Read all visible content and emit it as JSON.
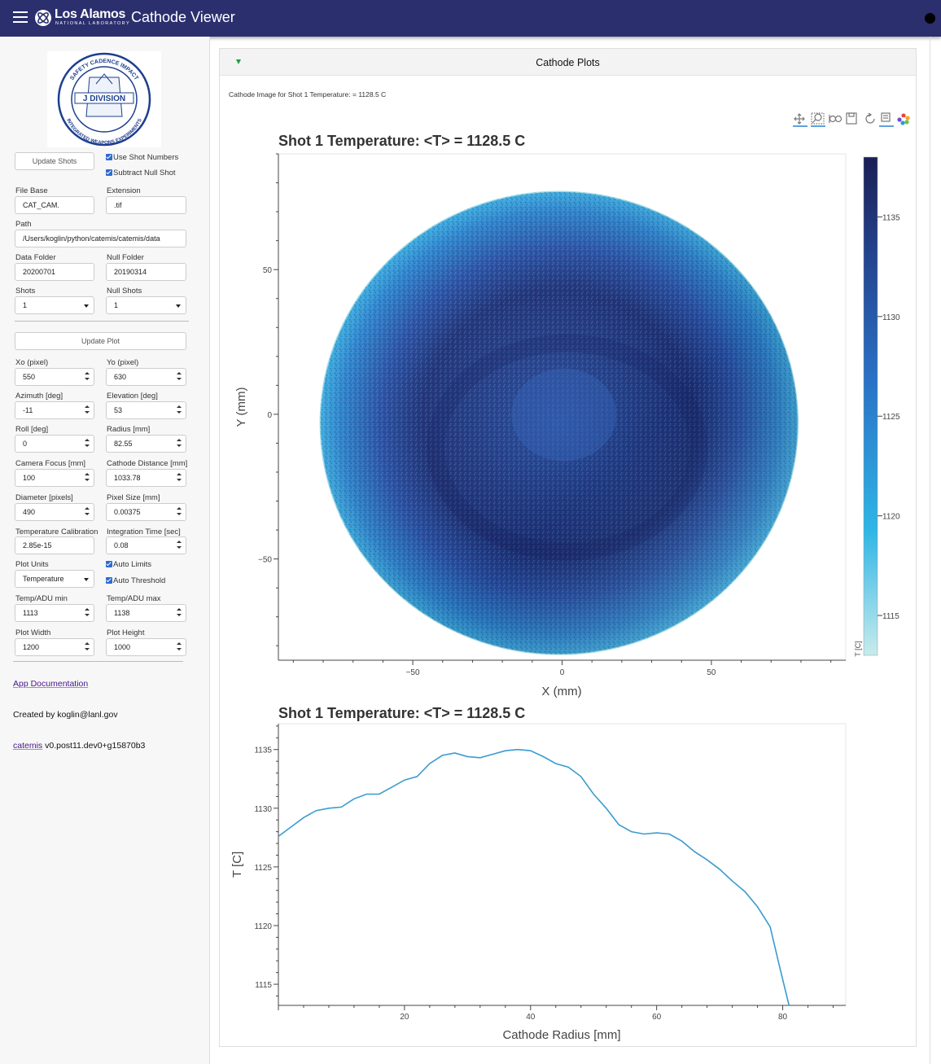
{
  "header": {
    "brand": "Los Alamos",
    "brand_sub": "NATIONAL LABORATORY",
    "app_title": "Cathode Viewer",
    "menu_icon": "hamburger-menu-icon",
    "status_icon": "busy-indicator"
  },
  "sidebar": {
    "logo": {
      "ring_top": "SAFETY   CADENCE   IMPACT",
      "center": "J DIVISION",
      "ring_bottom": "INTEGRATED WEAPONS EXPERIMENTS"
    },
    "update_shots_label": "Update Shots",
    "use_shot_numbers": {
      "label": "Use Shot Numbers",
      "checked": true
    },
    "subtract_null_shot": {
      "label": "Subtract Null Shot",
      "checked": true
    },
    "file_base": {
      "label": "File Base",
      "value": "CAT_CAM."
    },
    "extension": {
      "label": "Extension",
      "value": ".tif"
    },
    "path": {
      "label": "Path",
      "value": "/Users/koglin/python/catemis/catemis/data"
    },
    "data_folder": {
      "label": "Data Folder",
      "value": "20200701"
    },
    "null_folder": {
      "label": "Null Folder",
      "value": "20190314"
    },
    "shots": {
      "label": "Shots",
      "value": "1"
    },
    "null_shots": {
      "label": "Null Shots",
      "value": "1"
    },
    "update_plot_label": "Update Plot",
    "xo": {
      "label": "Xo (pixel)",
      "value": "550"
    },
    "yo": {
      "label": "Yo (pixel)",
      "value": "630"
    },
    "azimuth": {
      "label": "Azimuth [deg]",
      "value": "-11"
    },
    "elevation": {
      "label": "Elevation [deg]",
      "value": "53"
    },
    "roll": {
      "label": "Roll [deg]",
      "value": "0"
    },
    "radius": {
      "label": "Radius [mm]",
      "value": "82.55"
    },
    "camera_focus": {
      "label": "Camera Focus [mm]",
      "value": "100"
    },
    "cathode_distance": {
      "label": "Cathode Distance [mm]",
      "value": "1033.78"
    },
    "diameter": {
      "label": "Diameter [pixels]",
      "value": "490"
    },
    "pixel_size": {
      "label": "Pixel Size [mm]",
      "value": "0.00375"
    },
    "temp_calibration": {
      "label": "Temperature Calibration",
      "value": "2.85e-15"
    },
    "integration_time": {
      "label": "Integration Time [sec]",
      "value": "0.08"
    },
    "plot_units": {
      "label": "Plot Units",
      "value": "Temperature"
    },
    "auto_limits": {
      "label": "Auto Limits",
      "checked": true
    },
    "auto_threshold": {
      "label": "Auto Threshold",
      "checked": true
    },
    "temp_min": {
      "label": "Temp/ADU min",
      "value": "1113"
    },
    "temp_max": {
      "label": "Temp/ADU max",
      "value": "1138"
    },
    "plot_width": {
      "label": "Plot Width",
      "value": "1200"
    },
    "plot_height": {
      "label": "Plot Height",
      "value": "1000"
    },
    "app_doc_link": "App Documentation",
    "created_by": "Created by koglin@lanl.gov",
    "version_link": "catemis",
    "version": " v0.post11.dev0+g15870b3"
  },
  "main": {
    "card_title": "Cathode Plots",
    "subtitle": "Cathode Image for Shot 1 Temperature: = 1128.5 C",
    "toolbar_icons": [
      "pan-icon",
      "box-zoom-icon",
      "wheel-zoom-icon",
      "save-icon",
      "reset-icon",
      "hover-icon",
      "bokeh-logo-icon"
    ]
  },
  "chart_data": [
    {
      "type": "heatmap",
      "title": "Shot 1 Temperature: <T> = 1128.5 C",
      "xlabel": "X (mm)",
      "ylabel": "Y (mm)",
      "xlim": [
        -95,
        95
      ],
      "ylim": [
        -85,
        90
      ],
      "xticks": [
        -50,
        0,
        50
      ],
      "yticks": [
        -50,
        0,
        50
      ],
      "colorbar": {
        "label": "T [C]",
        "min": 1113,
        "max": 1138,
        "ticks": [
          1115,
          1120,
          1125,
          1130,
          1135
        ],
        "colors": [
          "#c8ebec",
          "#2fb6e6",
          "#2a72c6",
          "#24448f",
          "#1a1f55"
        ]
      },
      "description_values": {
        "mean_temperature": 1128.5,
        "unit": "C"
      }
    },
    {
      "type": "line",
      "title": "Shot 1 Temperature: <T> = 1128.5 C",
      "xlabel": "Cathode Radius [mm]",
      "ylabel": "T [C]",
      "xlim": [
        0,
        90
      ],
      "ylim": [
        1113.2,
        1137.2
      ],
      "xticks": [
        20,
        40,
        60,
        80
      ],
      "yticks": [
        1115,
        1120,
        1125,
        1130,
        1135
      ],
      "series": [
        {
          "color": "#3a9bd1",
          "x": [
            0,
            2,
            4,
            6,
            8,
            10,
            12,
            14,
            16,
            18,
            20,
            22,
            24,
            26,
            28,
            30,
            32,
            34,
            36,
            38,
            40,
            42,
            44,
            46,
            48,
            50,
            52,
            54,
            56,
            58,
            60,
            62,
            64,
            66,
            68,
            70,
            72,
            74,
            76,
            78,
            79.5,
            81
          ],
          "y": [
            1127.6,
            1128.4,
            1129.2,
            1129.8,
            1130.0,
            1130.1,
            1130.8,
            1131.2,
            1131.2,
            1131.8,
            1132.4,
            1132.7,
            1133.8,
            1134.5,
            1134.7,
            1134.4,
            1134.3,
            1134.6,
            1134.9,
            1135.0,
            1134.9,
            1134.4,
            1133.8,
            1133.5,
            1132.7,
            1131.2,
            1130.0,
            1128.6,
            1128.0,
            1127.8,
            1127.9,
            1127.8,
            1127.2,
            1126.3,
            1125.6,
            1124.8,
            1123.8,
            1122.9,
            1121.6,
            1119.9,
            1116.5,
            1113.2
          ]
        }
      ]
    }
  ]
}
